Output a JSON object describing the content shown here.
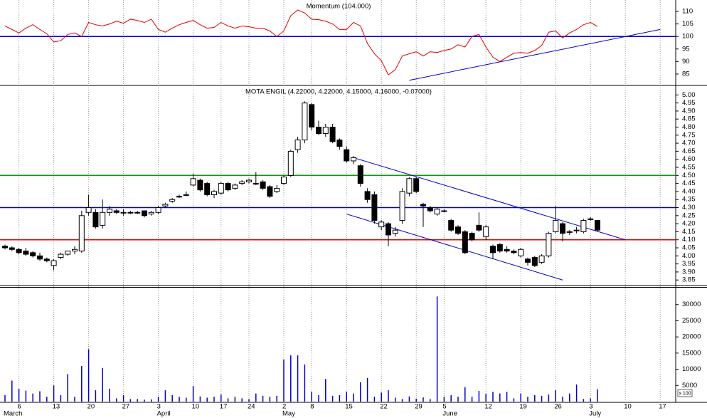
{
  "chart_data": [
    {
      "type": "line",
      "title": "Momentum (104.000)",
      "color": "#e00000",
      "values": [
        104.2,
        102.8,
        101.4,
        103.3,
        104.7,
        102.8,
        101.1,
        97.8,
        98.3,
        100.8,
        101.4,
        100,
        105.6,
        104.7,
        104.2,
        105,
        106.1,
        105.3,
        106.9,
        106.4,
        105.6,
        106.9,
        102.8,
        101.7,
        103.3,
        104.7,
        105.6,
        106.4,
        104.7,
        103.3,
        103.6,
        105.6,
        104.2,
        103.3,
        104.2,
        103.9,
        103.3,
        103.3,
        102.2,
        100,
        102.2,
        108.3,
        110.6,
        109.4,
        106.9,
        106.7,
        106.1,
        105,
        102.8,
        102.8,
        105.6,
        104.2,
        97.2,
        93.1,
        90.3,
        84.7,
        86.7,
        92.2,
        93.1,
        93.9,
        92.2,
        93.9,
        93.6,
        94.4,
        95,
        96.7,
        95.8,
        100,
        100.8,
        95.8,
        91.7,
        90,
        91.7,
        93.3,
        93.6,
        93.3,
        94.4,
        96.4,
        101.7,
        102.2,
        99.4,
        101.4,
        102.8,
        104.7,
        105.6,
        104,
        null,
        null,
        null,
        null,
        null,
        null,
        null,
        null,
        null
      ],
      "ylim": [
        81,
        114
      ],
      "yticks": [
        85,
        90,
        95,
        100,
        105,
        110
      ],
      "hlines": [
        {
          "value": 100,
          "color": "#0000cc"
        }
      ],
      "trendlines": [
        {
          "x": [
            58,
            94
          ],
          "y": [
            82.5,
            102.8
          ],
          "color": "#0000cc"
        }
      ]
    },
    {
      "type": "candlestick",
      "title": "MOTA ENGIL (4.22000, 4.22000, 4.15000, 4.16000, -0.07000)",
      "open": [
        4.06,
        4.05,
        4.04,
        4.03,
        4.02,
        4.0,
        3.98,
        3.94,
        3.99,
        4.01,
        4.03,
        4.03,
        4.27,
        4.27,
        4.19,
        4.27,
        4.28,
        4.27,
        4.27,
        4.27,
        4.28,
        4.26,
        4.27,
        4.31,
        4.34,
        4.37,
        4.38,
        4.44,
        4.47,
        4.45,
        4.38,
        4.39,
        4.45,
        4.42,
        4.45,
        4.46,
        4.45,
        4.46,
        4.43,
        4.4,
        4.45,
        4.5,
        4.66,
        4.72,
        4.94,
        4.8,
        4.76,
        4.8,
        4.72,
        4.66,
        4.59,
        4.56,
        4.4,
        4.38,
        4.18,
        4.2,
        4.14,
        4.22,
        4.39,
        4.48,
        4.32,
        4.3,
        4.26,
        4.28,
        4.22,
        4.18,
        4.15,
        4.14,
        4.19,
        4.12,
        4.06,
        4.07,
        4.04,
        4.03,
        4.0,
        3.98,
        3.99,
        3.96,
        4.0,
        4.15,
        4.2,
        4.15,
        4.16,
        4.15,
        4.23,
        4.22,
        null,
        null,
        null,
        null,
        null,
        null,
        null,
        null,
        null
      ],
      "high": [
        4.07,
        4.06,
        4.05,
        4.05,
        4.03,
        4.02,
        3.99,
        3.98,
        4.02,
        4.03,
        4.06,
        4.28,
        4.38,
        4.29,
        4.35,
        4.31,
        4.29,
        4.29,
        4.28,
        4.28,
        4.28,
        4.28,
        4.31,
        4.33,
        4.36,
        4.38,
        4.4,
        4.51,
        4.48,
        4.46,
        4.41,
        4.46,
        4.46,
        4.45,
        4.47,
        4.48,
        4.52,
        4.47,
        4.44,
        4.44,
        4.5,
        4.66,
        4.74,
        4.96,
        4.95,
        4.84,
        4.82,
        4.82,
        4.73,
        4.68,
        4.62,
        4.57,
        4.42,
        4.4,
        4.22,
        4.21,
        4.18,
        4.42,
        4.49,
        4.49,
        4.33,
        4.31,
        4.3,
        4.29,
        4.23,
        4.19,
        4.16,
        4.15,
        4.27,
        4.19,
        4.07,
        4.08,
        4.06,
        4.04,
        4.05,
        3.99,
        4.0,
        4.01,
        4.15,
        4.31,
        4.21,
        4.16,
        4.18,
        4.23,
        4.24,
        4.22,
        null,
        null,
        null,
        null,
        null,
        null,
        null,
        null,
        null
      ],
      "low": [
        4.04,
        4.03,
        4.01,
        4.0,
        3.99,
        3.97,
        3.96,
        3.91,
        3.98,
        4.0,
        4.01,
        4.02,
        4.25,
        4.17,
        4.17,
        4.25,
        4.26,
        4.25,
        4.26,
        4.26,
        4.24,
        4.25,
        4.26,
        4.3,
        4.33,
        4.36,
        4.37,
        4.43,
        4.4,
        4.37,
        4.36,
        4.38,
        4.4,
        4.41,
        4.44,
        4.45,
        4.44,
        4.41,
        4.36,
        4.39,
        4.44,
        4.49,
        4.64,
        4.7,
        4.78,
        4.75,
        4.74,
        4.7,
        4.66,
        4.58,
        4.57,
        4.43,
        4.33,
        4.2,
        4.16,
        4.06,
        4.12,
        4.2,
        4.37,
        4.39,
        4.18,
        4.27,
        4.25,
        4.27,
        4.15,
        4.13,
        4.01,
        4.09,
        4.15,
        4.1,
        3.98,
        4.02,
        4.02,
        4.01,
        3.99,
        3.94,
        3.93,
        3.95,
        3.99,
        4.14,
        4.09,
        4.13,
        4.14,
        4.14,
        4.22,
        4.15,
        null,
        null,
        null,
        null,
        null,
        null,
        null,
        null,
        null
      ],
      "close": [
        4.05,
        4.04,
        4.02,
        4.01,
        4.0,
        3.98,
        3.97,
        3.97,
        4.01,
        4.03,
        4.04,
        4.25,
        4.3,
        4.18,
        4.27,
        4.29,
        4.27,
        4.27,
        4.27,
        4.27,
        4.25,
        4.27,
        4.3,
        4.32,
        4.35,
        4.37,
        4.38,
        4.48,
        4.41,
        4.38,
        4.4,
        4.45,
        4.41,
        4.44,
        4.46,
        4.47,
        4.45,
        4.42,
        4.37,
        4.42,
        4.49,
        4.65,
        4.72,
        4.95,
        4.8,
        4.76,
        4.8,
        4.71,
        4.68,
        4.59,
        4.61,
        4.45,
        4.35,
        4.22,
        4.21,
        4.13,
        4.16,
        4.4,
        4.48,
        4.4,
        4.31,
        4.28,
        4.29,
        4.28,
        4.16,
        4.14,
        4.02,
        4.1,
        4.16,
        4.18,
        4.02,
        4.03,
        4.03,
        4.02,
        4.04,
        3.96,
        3.94,
        4.0,
        4.14,
        4.22,
        4.14,
        4.15,
        4.16,
        4.22,
        4.23,
        4.16,
        null,
        null,
        null,
        null,
        null,
        null,
        null,
        null,
        null
      ],
      "ylim": [
        3.82,
        5.05
      ],
      "yticks": [
        3.85,
        {
          "value": 3.9,
          "label": "3.90"
        },
        3.95,
        {
          "value": 4,
          "label": "4.00"
        },
        4.05,
        {
          "value": 4.1,
          "label": "4.10"
        },
        4.15,
        {
          "value": 4.2,
          "label": "4.20"
        },
        4.25,
        {
          "value": 4.3,
          "label": "4.30"
        },
        4.35,
        {
          "value": 4.4,
          "label": "4.40"
        },
        4.45,
        {
          "value": 4.5,
          "label": "4.50"
        },
        4.55,
        {
          "value": 4.6,
          "label": "4.60"
        },
        4.65,
        {
          "value": 4.7,
          "label": "4.70"
        },
        4.75,
        {
          "value": 4.8,
          "label": "4.80"
        },
        4.85,
        {
          "value": 4.9,
          "label": "4.90"
        },
        4.95,
        {
          "value": 5,
          "label": "5.00"
        }
      ],
      "hlines": [
        {
          "value": 4.5,
          "color": "#00a000"
        },
        {
          "value": 4.3,
          "color": "#0000cc"
        },
        {
          "value": 4.1,
          "color": "#e00000"
        }
      ],
      "trendlines": [
        {
          "x": [
            50,
            89
          ],
          "y": [
            4.61,
            4.1
          ],
          "color": "#0000cc"
        },
        {
          "x": [
            49,
            80
          ],
          "y": [
            4.26,
            3.85
          ],
          "color": "#0000cc"
        }
      ]
    },
    {
      "type": "bar",
      "color": "#0000cc",
      "unit_label": "x 100",
      "categories": [
        null,
        null,
        "6",
        null,
        null,
        null,
        null,
        "13",
        null,
        null,
        null,
        null,
        "20",
        null,
        null,
        null,
        null,
        "27",
        null,
        null,
        null,
        null,
        "3",
        null,
        null,
        null,
        null,
        "10",
        null,
        null,
        null,
        "17",
        null,
        null,
        null,
        "24",
        null,
        null,
        null,
        null,
        "2",
        null,
        null,
        null,
        "8",
        null,
        null,
        null,
        null,
        "15",
        null,
        null,
        null,
        null,
        "22",
        null,
        null,
        null,
        null,
        "29",
        null,
        null,
        null,
        "5",
        null,
        null,
        null,
        null,
        null,
        "12",
        null,
        null,
        null,
        null,
        "19",
        null,
        null,
        null,
        null,
        "26",
        null,
        null,
        null,
        null,
        "3",
        null,
        null,
        null,
        null,
        "10",
        null,
        null,
        null,
        null,
        "17"
      ],
      "months": [
        "March",
        null,
        null,
        null,
        null,
        null,
        null,
        null,
        null,
        null,
        null,
        null,
        null,
        null,
        null,
        null,
        null,
        null,
        null,
        null,
        null,
        null,
        "April",
        null,
        null,
        null,
        null,
        null,
        null,
        null,
        null,
        null,
        null,
        null,
        null,
        null,
        null,
        null,
        null,
        null,
        "May",
        null,
        null,
        null,
        null,
        null,
        null,
        null,
        null,
        null,
        null,
        null,
        null,
        null,
        null,
        null,
        null,
        null,
        null,
        null,
        null,
        null,
        null,
        "June",
        null,
        null,
        null,
        null,
        null,
        null,
        null,
        null,
        null,
        null,
        null,
        null,
        null,
        null,
        null,
        null,
        null,
        null,
        null,
        null,
        "July",
        null,
        null,
        null,
        null,
        null,
        null,
        null,
        null,
        null,
        null
      ],
      "values": [
        2000,
        6500,
        4000,
        3400,
        2500,
        3200,
        1500,
        5000,
        2000,
        8500,
        1500,
        11000,
        16200,
        3500,
        10400,
        4000,
        1000,
        2000,
        800,
        800,
        600,
        700,
        1500,
        3500,
        2000,
        1500,
        1200,
        4800,
        1600,
        1200,
        1500,
        2200,
        1000,
        1500,
        1000,
        800,
        2500,
        1800,
        1500,
        1800,
        13000,
        14300,
        14300,
        11500,
        3000,
        2000,
        7000,
        1800,
        2000,
        3000,
        2500,
        6000,
        7300,
        1500,
        2800,
        3500,
        1200,
        800,
        1600,
        900,
        1300,
        800,
        32500,
        1500,
        2000,
        1500,
        4500,
        1500,
        3300,
        2400,
        3000,
        2500,
        3000,
        1000,
        2500,
        1500,
        2000,
        1800,
        2200,
        3500,
        1500,
        2500,
        5300,
        800,
        1000,
        3800,
        null,
        null,
        null,
        null,
        null,
        null,
        null,
        null,
        null
      ],
      "ylim": [
        0,
        35000
      ],
      "yticks": [
        5000,
        10000,
        15000,
        20000,
        25000,
        30000
      ]
    }
  ]
}
